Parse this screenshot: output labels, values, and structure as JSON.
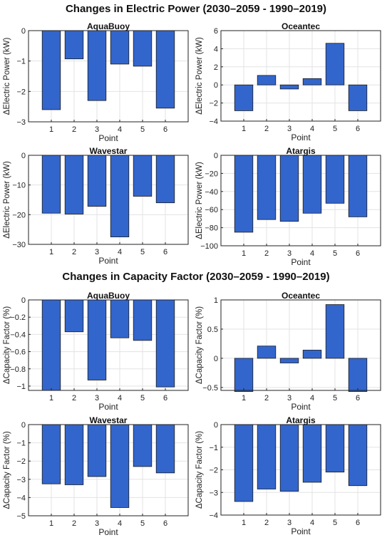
{
  "sections": [
    {
      "title": "Changes in Electric Power (2030–2059 - 1990–2019)"
    },
    {
      "title": "Changes in Capacity Factor (2030–2059 - 1990–2019)"
    }
  ],
  "colors": {
    "bar": "#3366cc",
    "bar_edge": "#1a1a1a",
    "grid": "#e3e3e3",
    "axis": "#222222"
  },
  "chart_data": [
    {
      "type": "bar",
      "title": "AquaBuoy",
      "xlabel": "Point",
      "ylabel": "ΔElectric Power (kW)",
      "categories": [
        "1",
        "2",
        "3",
        "4",
        "5",
        "6"
      ],
      "values": [
        -2.6,
        -0.93,
        -2.3,
        -1.1,
        -1.17,
        -2.55
      ],
      "ylim": [
        -3,
        0
      ],
      "yticks": [
        -3,
        -2,
        -1,
        0
      ],
      "ytick_labels": [
        "−3",
        "−2",
        "−1",
        "0"
      ],
      "grid": true
    },
    {
      "type": "bar",
      "title": "Oceantec",
      "xlabel": "Point",
      "ylabel": "ΔElectric Power (kW)",
      "categories": [
        "1",
        "2",
        "3",
        "4",
        "5",
        "6"
      ],
      "values": [
        -2.85,
        1.05,
        -0.45,
        0.7,
        4.6,
        -2.85
      ],
      "ylim": [
        -4,
        6
      ],
      "yticks": [
        -4,
        -2,
        0,
        2,
        4,
        6
      ],
      "ytick_labels": [
        "−4",
        "−2",
        "0",
        "2",
        "4",
        "6"
      ],
      "grid": true
    },
    {
      "type": "bar",
      "title": "Wavestar",
      "xlabel": "Point",
      "ylabel": "ΔElectric Power (kW)",
      "categories": [
        "1",
        "2",
        "3",
        "4",
        "5",
        "6"
      ],
      "values": [
        -19.5,
        -19.8,
        -17.2,
        -27.5,
        -13.8,
        -16
      ],
      "ylim": [
        -30,
        0
      ],
      "yticks": [
        -30,
        -20,
        -10,
        0
      ],
      "ytick_labels": [
        "−30",
        "−20",
        "−10",
        "0"
      ],
      "grid": true
    },
    {
      "type": "bar",
      "title": "Atargis",
      "xlabel": "Point",
      "ylabel": "ΔElectric Power (kW)",
      "categories": [
        "1",
        "2",
        "3",
        "4",
        "5",
        "6"
      ],
      "values": [
        -85,
        -71,
        -73,
        -64,
        -53,
        -68
      ],
      "ylim": [
        -100,
        0
      ],
      "yticks": [
        -100,
        -80,
        -60,
        -40,
        -20,
        0
      ],
      "ytick_labels": [
        "−100",
        "−80",
        "−60",
        "−40",
        "−20",
        "0"
      ],
      "grid": true
    },
    {
      "type": "bar",
      "title": "AquaBuoy",
      "xlabel": "Point",
      "ylabel": "ΔCapacity Factor (%)",
      "categories": [
        "1",
        "2",
        "3",
        "4",
        "5",
        "6"
      ],
      "values": [
        -1.05,
        -0.37,
        -0.93,
        -0.44,
        -0.47,
        -1.01
      ],
      "ylim": [
        -1.05,
        0
      ],
      "yticks": [
        -1,
        -0.8,
        -0.6,
        -0.4,
        -0.2,
        0
      ],
      "ytick_labels": [
        "−1",
        "−0.8",
        "−0.6",
        "−0.4",
        "−0.2",
        "0"
      ],
      "grid": true
    },
    {
      "type": "bar",
      "title": "Oceantec",
      "xlabel": "Point",
      "ylabel": "ΔCapacity Factor (%)",
      "categories": [
        "1",
        "2",
        "3",
        "4",
        "5",
        "6"
      ],
      "values": [
        -0.57,
        0.21,
        -0.08,
        0.14,
        0.92,
        -0.57
      ],
      "ylim": [
        -0.55,
        1
      ],
      "yticks": [
        -0.5,
        0,
        0.5,
        1
      ],
      "ytick_labels": [
        "−0.5",
        "0",
        "0.5",
        "1"
      ],
      "grid": true
    },
    {
      "type": "bar",
      "title": "Wavestar",
      "xlabel": "Point",
      "ylabel": "ΔCapacity Factor (%)",
      "categories": [
        "1",
        "2",
        "3",
        "4",
        "5",
        "6"
      ],
      "values": [
        -3.25,
        -3.3,
        -2.85,
        -4.55,
        -2.3,
        -2.65
      ],
      "ylim": [
        -5,
        0
      ],
      "yticks": [
        -5,
        -4,
        -3,
        -2,
        -1,
        0
      ],
      "ytick_labels": [
        "−5",
        "−4",
        "−3",
        "−2",
        "−1",
        "0"
      ],
      "grid": true
    },
    {
      "type": "bar",
      "title": "Atargis",
      "xlabel": "Point",
      "ylabel": "ΔCapacity Factor (%)",
      "categories": [
        "1",
        "2",
        "3",
        "4",
        "5",
        "6"
      ],
      "values": [
        -3.4,
        -2.85,
        -2.95,
        -2.55,
        -2.1,
        -2.7
      ],
      "ylim": [
        -4,
        0
      ],
      "yticks": [
        -4,
        -3,
        -2,
        -1,
        0
      ],
      "ytick_labels": [
        "−4",
        "−3",
        "−2",
        "−1",
        "0"
      ],
      "grid": true
    }
  ]
}
